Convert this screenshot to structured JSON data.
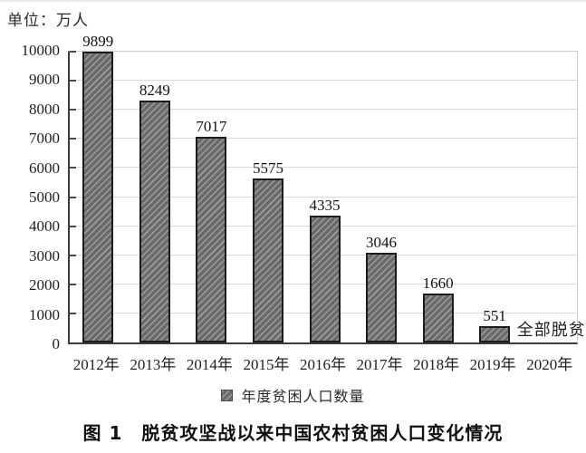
{
  "unit_label": "单位：万人",
  "caption": "图 1　脱贫攻坚战以来中国农村贫困人口变化情况",
  "chart_data": {
    "type": "bar",
    "title": "图 1 脱贫攻坚战以来中国农村贫困人口变化情况",
    "unit": "万人",
    "categories": [
      "2012年",
      "2013年",
      "2014年",
      "2015年",
      "2016年",
      "2017年",
      "2018年",
      "2019年",
      "2020年"
    ],
    "values": [
      9899,
      8249,
      7017,
      5575,
      4335,
      3046,
      1660,
      551,
      0
    ],
    "bar_labels": [
      "9899",
      "8249",
      "7017",
      "5575",
      "4335",
      "3046",
      "1660",
      "551",
      ""
    ],
    "annotation": {
      "text": "全部脱贫",
      "category_index": 8
    },
    "xlabel": "",
    "ylabel": "万人",
    "ylim": [
      0,
      10000
    ],
    "ytick_step": 1000,
    "yticks": [
      0,
      1000,
      2000,
      3000,
      4000,
      5000,
      6000,
      7000,
      8000,
      9000,
      10000
    ],
    "grid": true,
    "legend": [
      "年度贫困人口数量"
    ],
    "legend_position": "bottom",
    "colors": {
      "bar_fill": "#6a6a6a",
      "bar_hatch": "#9d9d9d",
      "bar_border": "#1c1c1c",
      "gridline": "#d9d9d9",
      "axis": "#3c3c3c",
      "frame": "#cccccc",
      "text": "#1a1a1a"
    }
  }
}
